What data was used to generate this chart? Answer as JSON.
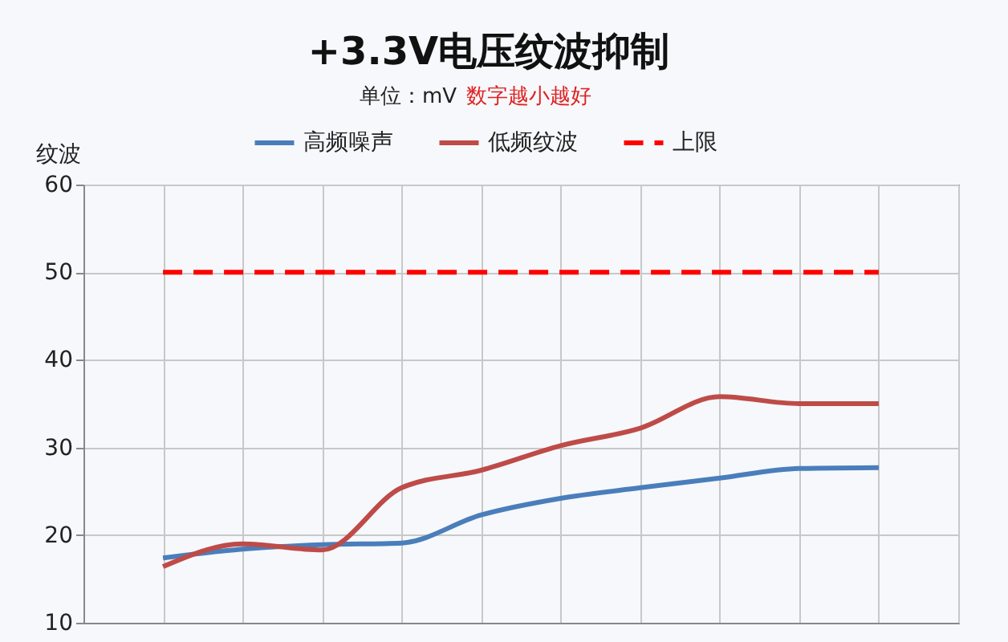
{
  "chart_data": {
    "type": "line",
    "title": "+3.3V电压纹波抑制",
    "subtitle": "单位：mV",
    "annotations": [
      "数字越小越好"
    ],
    "ylabel": "纹波",
    "categories": [
      null,
      null,
      null,
      null,
      null,
      null,
      null,
      null,
      null,
      null
    ],
    "series": [
      {
        "name": "高频噪声",
        "color": "#4a7ebb",
        "values": [
          17.4,
          18.4,
          18.9,
          19.1,
          22.3,
          24.2,
          25.4,
          26.5,
          27.6,
          27.7
        ]
      },
      {
        "name": "低频纹波",
        "color": "#be4b48",
        "values": [
          16.4,
          19.0,
          18.3,
          25.4,
          27.4,
          30.2,
          32.2,
          35.8,
          35.0,
          35.0
        ]
      }
    ],
    "ref_lines": [
      {
        "axis": "y",
        "value": 50,
        "label": "上限",
        "color": "#ff0000",
        "line_style": "dashed"
      }
    ],
    "ylim": [
      10,
      60
    ],
    "yticks": [
      10,
      20,
      30,
      40,
      50,
      60
    ],
    "grid": true,
    "legend": "top",
    "marker": "none",
    "line_style": "solid",
    "tick_labels": "y"
  }
}
